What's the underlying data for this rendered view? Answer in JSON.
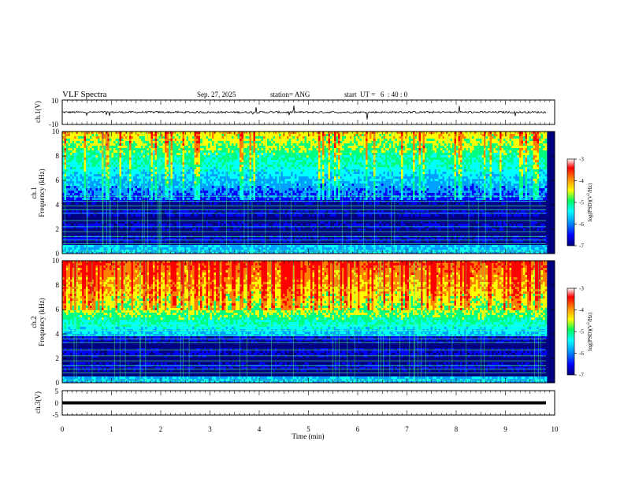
{
  "header": {
    "title": "VLF Spectra",
    "date": "Sep. 27, 2025",
    "station": "station= ANG",
    "start": "start  UT =   6  : 40 : 0"
  },
  "colors": {
    "spectrogram_scale": [
      "#000080",
      "#0000ff",
      "#00a0ff",
      "#00ffff",
      "#00ff80",
      "#ffff00",
      "#ff8000",
      "#ff0000",
      "#ffffff"
    ]
  },
  "chart_data": [
    {
      "type": "line",
      "name": "ch1-waveform",
      "ylabel": "ch.1(V)",
      "ylim": [
        -10,
        10
      ],
      "yticks": [
        "10",
        "-10"
      ],
      "xlim": [
        0,
        10
      ],
      "baseline": 0
    },
    {
      "type": "heatmap",
      "name": "ch1-spectrogram",
      "ylabel": "ch.1\nFrequency (kHz)",
      "ylim": [
        0,
        10
      ],
      "yticks": [
        "0",
        "2",
        "4",
        "6",
        "8",
        "10"
      ],
      "colorbar": {
        "label": "log(PSD)(V²/Hz)",
        "range": [
          -7,
          -3
        ],
        "ticks": [
          "-3",
          "-4",
          "-5",
          "-6",
          "-7"
        ]
      }
    },
    {
      "type": "heatmap",
      "name": "ch2-spectrogram",
      "ylabel": "ch.2\nFrequency (kHz)",
      "ylim": [
        0,
        10
      ],
      "yticks": [
        "0",
        "2",
        "4",
        "6",
        "8",
        "10"
      ],
      "colorbar": {
        "label": "log(PSD)(V²/Hz)",
        "range": [
          -7,
          -3
        ],
        "ticks": [
          "-3",
          "-4",
          "-5",
          "-6",
          "-7"
        ]
      }
    },
    {
      "type": "line",
      "name": "ch3-waveform",
      "ylabel": "ch.3(V)",
      "ylim": [
        -5,
        5
      ],
      "yticks": [
        "5",
        "0",
        "-5"
      ],
      "baseline": 0
    }
  ],
  "xaxis": {
    "label": "Time (min)",
    "range": [
      0,
      10
    ],
    "ticks": [
      "0",
      "1",
      "2",
      "3",
      "4",
      "5",
      "6",
      "7",
      "8",
      "9",
      "10"
    ]
  }
}
